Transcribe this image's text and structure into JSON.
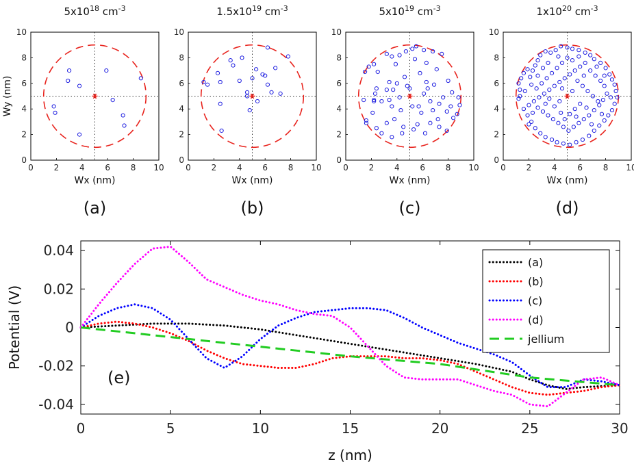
{
  "chart_data": [
    {
      "type": "scatter",
      "panel": "(a)",
      "title": "5x10^18 cm^-3",
      "title_base": "5x10",
      "title_exp": "18",
      "title_unit": "cm",
      "title_unit_exp": "-3",
      "xlabel": "Wx (nm)",
      "ylabel": "Wy (nm)",
      "xlim": [
        0,
        10
      ],
      "ylim": [
        0,
        10
      ],
      "xticks": [
        "0",
        "2",
        "4",
        "6",
        "8",
        "10"
      ],
      "yticks": [
        "0",
        "2",
        "4",
        "6",
        "8",
        "10"
      ],
      "center": [
        5,
        5
      ],
      "circle_radius": 4,
      "points": [
        [
          3.0,
          7.0
        ],
        [
          2.9,
          6.2
        ],
        [
          3.8,
          5.8
        ],
        [
          1.8,
          4.2
        ],
        [
          1.9,
          3.7
        ],
        [
          3.8,
          2.0
        ],
        [
          5.9,
          7.0
        ],
        [
          6.4,
          4.7
        ],
        [
          7.2,
          3.5
        ],
        [
          7.3,
          2.7
        ],
        [
          8.6,
          6.4
        ]
      ]
    },
    {
      "type": "scatter",
      "panel": "(b)",
      "title": "1.5x10^19 cm^-3",
      "title_base": "1.5x10",
      "title_exp": "19",
      "title_unit": "cm",
      "title_unit_exp": "-3",
      "xlabel": "Wx (nm)",
      "ylabel": "",
      "xlim": [
        0,
        10
      ],
      "ylim": [
        0,
        10
      ],
      "xticks": [
        "0",
        "2",
        "4",
        "6",
        "8",
        "10"
      ],
      "yticks": [
        "0",
        "2",
        "4",
        "6",
        "8",
        "10"
      ],
      "center": [
        5,
        5
      ],
      "circle_radius": 4,
      "points": [
        [
          1.2,
          6.1
        ],
        [
          1.5,
          5.9
        ],
        [
          2.3,
          6.8
        ],
        [
          2.5,
          6.1
        ],
        [
          2.5,
          4.4
        ],
        [
          2.6,
          2.3
        ],
        [
          3.3,
          7.8
        ],
        [
          3.5,
          7.4
        ],
        [
          4.0,
          6.2
        ],
        [
          4.2,
          8.0
        ],
        [
          4.6,
          5.3
        ],
        [
          4.6,
          5.0
        ],
        [
          4.8,
          3.9
        ],
        [
          5.0,
          6.4
        ],
        [
          5.3,
          7.1
        ],
        [
          5.4,
          4.6
        ],
        [
          5.8,
          6.7
        ],
        [
          6.0,
          6.6
        ],
        [
          6.2,
          8.8
        ],
        [
          6.5,
          5.3
        ],
        [
          6.8,
          7.2
        ],
        [
          7.2,
          5.2
        ],
        [
          7.8,
          8.1
        ],
        [
          6.2,
          5.9
        ]
      ]
    },
    {
      "type": "scatter",
      "panel": "(c)",
      "title": "5x10^19 cm^-3",
      "title_base": "5x10",
      "title_exp": "19",
      "title_unit": "cm",
      "title_unit_exp": "-3",
      "xlabel": "Wx (nm)",
      "ylabel": "",
      "xlim": [
        0,
        10
      ],
      "ylim": [
        0,
        10
      ],
      "xticks": [
        "0",
        "2",
        "4",
        "6",
        "8",
        "10"
      ],
      "yticks": [
        "0",
        "2",
        "4",
        "6",
        "8",
        "10"
      ],
      "center": [
        5,
        5
      ],
      "circle_radius": 4,
      "points": [
        [
          1.5,
          6.9
        ],
        [
          1.8,
          7.3
        ],
        [
          2.2,
          7.5
        ],
        [
          2.5,
          6.9
        ],
        [
          3.2,
          8.3
        ],
        [
          3.6,
          8.1
        ],
        [
          3.9,
          7.5
        ],
        [
          4.2,
          8.2
        ],
        [
          4.7,
          8.5
        ],
        [
          5.2,
          8.7
        ],
        [
          5.5,
          8.9
        ],
        [
          6.1,
          8.6
        ],
        [
          6.3,
          7.6
        ],
        [
          6.8,
          8.5
        ],
        [
          7.5,
          8.3
        ],
        [
          5.8,
          6.8
        ],
        [
          4.6,
          6.5
        ],
        [
          3.4,
          6.1
        ],
        [
          2.4,
          5.6
        ],
        [
          2.3,
          5.2
        ],
        [
          2.2,
          4.7
        ],
        [
          2.2,
          4.6
        ],
        [
          2.8,
          4.6
        ],
        [
          3.2,
          5.5
        ],
        [
          3.4,
          4.7
        ],
        [
          3.6,
          4.2
        ],
        [
          3.7,
          5.5
        ],
        [
          4.2,
          4.9
        ],
        [
          4.3,
          3.9
        ],
        [
          4.8,
          5.8
        ],
        [
          5.0,
          5.6
        ],
        [
          5.2,
          4.2
        ],
        [
          5.7,
          4.2
        ],
        [
          5.9,
          3.7
        ],
        [
          6.1,
          5.2
        ],
        [
          6.4,
          5.6
        ],
        [
          6.6,
          4.6
        ],
        [
          6.8,
          3.9
        ],
        [
          7.2,
          3.2
        ],
        [
          7.3,
          4.4
        ],
        [
          7.6,
          4.9
        ],
        [
          7.9,
          3.8
        ],
        [
          8.0,
          6.2
        ],
        [
          8.2,
          4.2
        ],
        [
          8.3,
          5.3
        ],
        [
          8.4,
          3.3
        ],
        [
          8.7,
          3.6
        ],
        [
          8.8,
          4.9
        ],
        [
          8.9,
          4.3
        ],
        [
          7.1,
          7.1
        ],
        [
          5.6,
          2.8
        ],
        [
          5.3,
          2.4
        ],
        [
          4.5,
          2.6
        ],
        [
          3.8,
          3.2
        ],
        [
          3.2,
          2.9
        ],
        [
          2.8,
          2.1
        ],
        [
          2.4,
          2.5
        ],
        [
          3.6,
          1.8
        ],
        [
          4.4,
          2.1
        ],
        [
          6.2,
          2.1
        ],
        [
          6.6,
          2.9
        ],
        [
          7.3,
          2.6
        ],
        [
          7.9,
          2.3
        ],
        [
          1.6,
          3.1
        ],
        [
          2.1,
          3.7
        ],
        [
          1.4,
          4.7
        ],
        [
          1.6,
          2.9
        ],
        [
          4.0,
          6.0
        ],
        [
          6.3,
          6.1
        ],
        [
          6.9,
          5.9
        ],
        [
          5.4,
          7.9
        ]
      ]
    },
    {
      "type": "scatter",
      "panel": "(d)",
      "title": "1x10^20 cm^-3",
      "title_base": "1x10",
      "title_exp": "20",
      "title_unit": "cm",
      "title_unit_exp": "-3",
      "xlabel": "Wx (nm)",
      "ylabel": "",
      "xlim": [
        0,
        10
      ],
      "ylim": [
        0,
        10
      ],
      "xticks": [
        "0",
        "2",
        "4",
        "6",
        "8",
        "10"
      ],
      "yticks": [
        "0",
        "2",
        "4",
        "6",
        "8",
        "10"
      ],
      "center": [
        5,
        5
      ],
      "circle_radius": 4,
      "points": [
        [
          1.2,
          6.0
        ],
        [
          1.3,
          5.5
        ],
        [
          1.3,
          5.0
        ],
        [
          1.2,
          4.8
        ],
        [
          1.4,
          6.4
        ],
        [
          1.6,
          6.8
        ],
        [
          1.9,
          7.1
        ],
        [
          2.1,
          6.5
        ],
        [
          2.3,
          7.0
        ],
        [
          2.5,
          7.4
        ],
        [
          2.7,
          7.8
        ],
        [
          2.9,
          8.2
        ],
        [
          3.3,
          8.5
        ],
        [
          3.7,
          8.4
        ],
        [
          4.1,
          8.6
        ],
        [
          4.5,
          8.9
        ],
        [
          5.0,
          8.8
        ],
        [
          5.4,
          8.7
        ],
        [
          5.9,
          8.6
        ],
        [
          6.4,
          8.4
        ],
        [
          6.8,
          8.2
        ],
        [
          7.1,
          7.9
        ],
        [
          7.6,
          7.6
        ],
        [
          8.0,
          7.2
        ],
        [
          8.3,
          6.7
        ],
        [
          8.5,
          6.3
        ],
        [
          8.7,
          5.9
        ],
        [
          8.8,
          5.4
        ],
        [
          8.9,
          4.9
        ],
        [
          8.7,
          4.4
        ],
        [
          8.5,
          3.9
        ],
        [
          8.2,
          3.5
        ],
        [
          7.9,
          3.1
        ],
        [
          7.5,
          2.7
        ],
        [
          7.1,
          2.3
        ],
        [
          6.7,
          1.9
        ],
        [
          6.2,
          1.6
        ],
        [
          5.7,
          1.4
        ],
        [
          5.2,
          1.2
        ],
        [
          4.7,
          1.3
        ],
        [
          4.2,
          1.4
        ],
        [
          3.8,
          1.6
        ],
        [
          3.3,
          1.8
        ],
        [
          2.9,
          2.1
        ],
        [
          2.5,
          2.5
        ],
        [
          2.2,
          3.0
        ],
        [
          1.9,
          3.5
        ],
        [
          1.6,
          4.0
        ],
        [
          2.0,
          4.3
        ],
        [
          2.4,
          4.6
        ],
        [
          2.8,
          4.9
        ],
        [
          3.2,
          5.2
        ],
        [
          3.6,
          5.5
        ],
        [
          4.0,
          5.8
        ],
        [
          4.4,
          6.1
        ],
        [
          4.8,
          6.4
        ],
        [
          5.2,
          6.7
        ],
        [
          5.6,
          7.0
        ],
        [
          6.0,
          7.3
        ],
        [
          6.4,
          7.6
        ],
        [
          6.8,
          7.0
        ],
        [
          7.2,
          6.6
        ],
        [
          7.6,
          6.2
        ],
        [
          7.9,
          5.8
        ],
        [
          8.1,
          5.2
        ],
        [
          7.8,
          4.7
        ],
        [
          7.5,
          4.3
        ],
        [
          7.1,
          3.9
        ],
        [
          6.7,
          3.5
        ],
        [
          6.3,
          3.2
        ],
        [
          5.9,
          2.9
        ],
        [
          5.5,
          2.6
        ],
        [
          5.1,
          2.3
        ],
        [
          4.7,
          2.6
        ],
        [
          4.3,
          2.9
        ],
        [
          3.9,
          3.2
        ],
        [
          3.5,
          3.5
        ],
        [
          3.1,
          3.8
        ],
        [
          2.7,
          4.1
        ],
        [
          2.3,
          3.7
        ],
        [
          2.6,
          5.6
        ],
        [
          3.0,
          6.0
        ],
        [
          3.4,
          6.4
        ],
        [
          3.8,
          6.8
        ],
        [
          4.2,
          7.2
        ],
        [
          4.6,
          7.6
        ],
        [
          5.0,
          8.0
        ],
        [
          5.4,
          7.8
        ],
        [
          5.8,
          6.2
        ],
        [
          6.2,
          5.8
        ],
        [
          6.6,
          5.4
        ],
        [
          7.0,
          5.0
        ],
        [
          7.4,
          4.6
        ],
        [
          6.0,
          4.4
        ],
        [
          5.6,
          4.0
        ],
        [
          5.2,
          3.6
        ],
        [
          4.8,
          3.2
        ],
        [
          4.4,
          4.6
        ],
        [
          4.0,
          4.2
        ],
        [
          3.6,
          4.8
        ],
        [
          4.6,
          5.6
        ],
        [
          5.4,
          5.4
        ],
        [
          6.3,
          6.6
        ],
        [
          7.3,
          7.3
        ],
        [
          3.1,
          7.2
        ],
        [
          2.2,
          5.9
        ],
        [
          1.7,
          5.4
        ],
        [
          6.9,
          2.8
        ],
        [
          7.7,
          3.6
        ],
        [
          8.4,
          4.9
        ],
        [
          5.9,
          8.1
        ],
        [
          4.3,
          8.1
        ],
        [
          3.5,
          7.6
        ],
        [
          2.7,
          6.6
        ],
        [
          5.7,
          3.4
        ],
        [
          4.5,
          3.7
        ],
        [
          6.5,
          4.1
        ],
        [
          3.3,
          4.4
        ],
        [
          2.0,
          2.8
        ],
        [
          7.9,
          6.6
        ]
      ]
    },
    {
      "type": "line",
      "panel": "(e)",
      "xlabel": "z (nm)",
      "ylabel": "Potential (V)",
      "xlim": [
        0,
        30
      ],
      "ylim": [
        -0.045,
        0.045
      ],
      "xticks": [
        "0",
        "5",
        "10",
        "15",
        "20",
        "25",
        "30"
      ],
      "yticks": [
        "0.04",
        "0.02",
        "0",
        "-0.02",
        "-0.04"
      ],
      "legend_position": "top-right",
      "series": [
        {
          "name": "(a)",
          "color": "#000000",
          "style": "dotted",
          "x": [
            0,
            2,
            4,
            6,
            8,
            10,
            12,
            14,
            16,
            18,
            20,
            22,
            24,
            25,
            26,
            27,
            28,
            30
          ],
          "y": [
            0,
            0.001,
            0.002,
            0.002,
            0.001,
            -0.001,
            -0.004,
            -0.007,
            -0.01,
            -0.013,
            -0.016,
            -0.019,
            -0.023,
            -0.027,
            -0.03,
            -0.032,
            -0.031,
            -0.03
          ]
        },
        {
          "name": "(b)",
          "color": "#ff0000",
          "style": "dotted",
          "x": [
            0,
            1,
            2,
            3,
            4,
            5,
            6,
            7,
            8,
            9,
            10,
            11,
            12,
            13,
            14,
            15,
            16,
            17,
            18,
            19,
            20,
            21,
            22,
            23,
            24,
            25,
            26,
            27,
            28,
            29,
            30
          ],
          "y": [
            0,
            0.002,
            0.003,
            0.002,
            0,
            -0.003,
            -0.007,
            -0.012,
            -0.016,
            -0.019,
            -0.02,
            -0.021,
            -0.021,
            -0.019,
            -0.016,
            -0.015,
            -0.015,
            -0.015,
            -0.016,
            -0.016,
            -0.017,
            -0.019,
            -0.023,
            -0.027,
            -0.031,
            -0.034,
            -0.035,
            -0.034,
            -0.033,
            -0.031,
            -0.03
          ]
        },
        {
          "name": "(c)",
          "color": "#0000ff",
          "style": "dotted",
          "x": [
            0,
            1,
            2,
            3,
            4,
            5,
            6,
            7,
            8,
            9,
            10,
            11,
            12,
            13,
            14,
            15,
            16,
            17,
            18,
            19,
            20,
            21,
            22,
            23,
            24,
            25,
            26,
            27,
            28,
            29,
            30
          ],
          "y": [
            0,
            0.006,
            0.01,
            0.012,
            0.01,
            0.004,
            -0.006,
            -0.016,
            -0.021,
            -0.015,
            -0.006,
            0.001,
            0.005,
            0.008,
            0.009,
            0.01,
            0.01,
            0.009,
            0.005,
            0,
            -0.004,
            -0.008,
            -0.011,
            -0.014,
            -0.018,
            -0.025,
            -0.031,
            -0.031,
            -0.027,
            -0.028,
            -0.03
          ]
        },
        {
          "name": "(d)",
          "color": "#ff00ff",
          "style": "dotted",
          "x": [
            0,
            1,
            2,
            3,
            4,
            5,
            6,
            7,
            8,
            9,
            10,
            11,
            12,
            13,
            14,
            15,
            16,
            17,
            18,
            19,
            20,
            21,
            22,
            23,
            24,
            25,
            26,
            27,
            28,
            29,
            30
          ],
          "y": [
            0,
            0.012,
            0.023,
            0.033,
            0.041,
            0.042,
            0.034,
            0.025,
            0.021,
            0.017,
            0.014,
            0.012,
            0.009,
            0.007,
            0.006,
            0,
            -0.01,
            -0.02,
            -0.026,
            -0.027,
            -0.027,
            -0.027,
            -0.03,
            -0.033,
            -0.035,
            -0.04,
            -0.041,
            -0.034,
            -0.027,
            -0.026,
            -0.03
          ]
        },
        {
          "name": "jellium",
          "color": "#22cc22",
          "style": "dashed",
          "x": [
            0,
            5,
            10,
            15,
            20,
            25,
            30
          ],
          "y": [
            0,
            -0.005,
            -0.01,
            -0.015,
            -0.019,
            -0.026,
            -0.03
          ]
        }
      ]
    }
  ]
}
